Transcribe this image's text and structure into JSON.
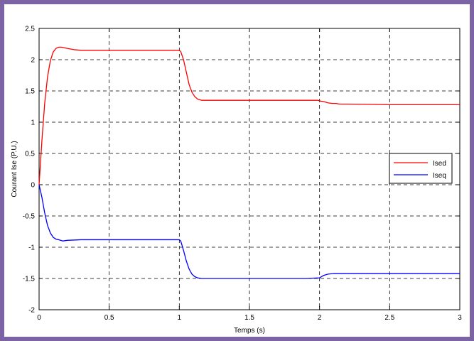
{
  "chart_data": {
    "type": "line",
    "xlabel": "Temps (s)",
    "ylabel": "Courant Ise (P.U.)",
    "xlim": [
      0,
      3
    ],
    "ylim": [
      -2,
      2.5
    ],
    "xticks": [
      0,
      0.5,
      1,
      1.5,
      2,
      2.5,
      3
    ],
    "xtick_labels": [
      "0",
      "0.5",
      "1",
      "1.5",
      "2",
      "2.5",
      "3"
    ],
    "yticks": [
      -2,
      -1.5,
      -1,
      -0.5,
      0,
      0.5,
      1,
      1.5,
      2,
      2.5
    ],
    "ytick_labels": [
      "-2",
      "-1.5",
      "-1",
      "-0.5",
      "0",
      "0.5",
      "1",
      "1.5",
      "2",
      "2.5"
    ],
    "grid": true,
    "legend_position": "right",
    "series": [
      {
        "name": "Ised",
        "color": "#ff0000",
        "x": [
          0,
          0.02,
          0.04,
          0.06,
          0.08,
          0.1,
          0.12,
          0.14,
          0.16,
          0.18,
          0.2,
          0.25,
          0.3,
          0.5,
          0.8,
          1.0,
          1.01,
          1.03,
          1.05,
          1.07,
          1.09,
          1.11,
          1.13,
          1.16,
          1.2,
          1.5,
          1.9,
          1.99,
          2.0,
          2.03,
          2.06,
          2.09,
          2.12,
          2.14,
          2.2,
          2.5,
          3.0
        ],
        "y": [
          0,
          0.7,
          1.3,
          1.72,
          1.98,
          2.12,
          2.18,
          2.2,
          2.2,
          2.19,
          2.18,
          2.16,
          2.15,
          2.15,
          2.15,
          2.15,
          2.13,
          2.0,
          1.8,
          1.6,
          1.48,
          1.41,
          1.37,
          1.35,
          1.35,
          1.35,
          1.35,
          1.35,
          1.34,
          1.33,
          1.31,
          1.3,
          1.3,
          1.29,
          1.29,
          1.28,
          1.28
        ]
      },
      {
        "name": "Iseq",
        "color": "#0000ff",
        "x": [
          0,
          0.02,
          0.04,
          0.06,
          0.08,
          0.1,
          0.12,
          0.14,
          0.17,
          0.2,
          0.3,
          0.6,
          1.0,
          1.01,
          1.03,
          1.05,
          1.07,
          1.09,
          1.11,
          1.13,
          1.16,
          1.2,
          1.5,
          1.9,
          2.0,
          2.03,
          2.06,
          2.1,
          2.5,
          3.0
        ],
        "y": [
          0,
          -0.2,
          -0.45,
          -0.65,
          -0.77,
          -0.84,
          -0.87,
          -0.88,
          -0.9,
          -0.89,
          -0.88,
          -0.88,
          -0.88,
          -0.9,
          -1.05,
          -1.22,
          -1.35,
          -1.43,
          -1.47,
          -1.49,
          -1.5,
          -1.5,
          -1.5,
          -1.5,
          -1.49,
          -1.45,
          -1.43,
          -1.42,
          -1.42,
          -1.42
        ]
      }
    ]
  }
}
